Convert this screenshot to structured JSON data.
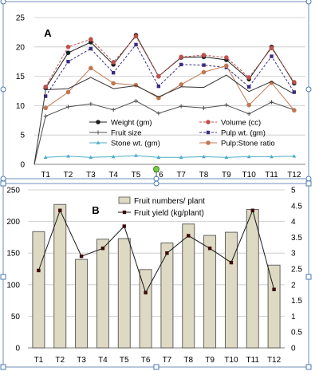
{
  "chart_data": [
    {
      "type": "line",
      "panel_label": "A",
      "categories": [
        "T1",
        "T2",
        "T3",
        "T4",
        "T5",
        "T6",
        "T7",
        "T8",
        "T9",
        "T10",
        "T11",
        "T12"
      ],
      "ylim": [
        0,
        25
      ],
      "yticks": [
        0,
        5,
        10,
        15,
        20,
        25
      ],
      "grid": true,
      "legend_position": "bottom-center",
      "series": [
        {
          "name": "Weight (gm)",
          "color": "#1f1f1f",
          "dash": "solid",
          "marker": "circle",
          "values": [
            13.0,
            19.0,
            20.8,
            17.0,
            22.0,
            15.0,
            18.2,
            18.3,
            17.8,
            14.5,
            20.0,
            13.8
          ]
        },
        {
          "name": "Volume (cc)",
          "color": "#c0504d",
          "dash": "dashed",
          "marker": "circle",
          "values": [
            13.2,
            20.0,
            21.3,
            17.4,
            21.8,
            15.0,
            18.3,
            18.6,
            18.2,
            14.8,
            19.8,
            14.0
          ]
        },
        {
          "name": "Fruit size",
          "color": "#4f4f4f",
          "dash": "solid",
          "marker": "star",
          "values": [
            8.2,
            9.8,
            10.3,
            9.3,
            10.8,
            8.7,
            9.9,
            9.6,
            10.1,
            8.6,
            10.6,
            9.3
          ]
        },
        {
          "name": "Pulp wt. (gm)",
          "color": "#3b2b80",
          "dash": "dashed",
          "marker": "square",
          "values": [
            11.6,
            17.5,
            19.7,
            15.6,
            20.4,
            13.3,
            17.0,
            16.9,
            16.5,
            13.2,
            18.4,
            12.3
          ]
        },
        {
          "name": "Stone wt. (gm)",
          "color": "#4bacc6",
          "dash": "solid",
          "marker": "triangle",
          "values": [
            1.2,
            1.4,
            1.2,
            1.3,
            1.5,
            1.2,
            1.2,
            1.3,
            1.2,
            1.3,
            1.3,
            1.4
          ]
        },
        {
          "name": "Pulp:Stone ratio",
          "color": "#c07850",
          "dash": "solid",
          "marker": "circle",
          "values": [
            9.6,
            12.3,
            16.4,
            13.8,
            13.5,
            11.3,
            13.6,
            15.7,
            16.8,
            10.1,
            13.9,
            9.2
          ]
        },
        {
          "name": "",
          "color": "#333333",
          "dash": "solid",
          "marker": "none",
          "values": [
            12.7,
            12.9,
            14.8,
            12.9,
            13.4,
            11.5,
            13.2,
            13.1,
            15.2,
            12.4,
            14.1,
            12.0
          ]
        }
      ]
    },
    {
      "type": "bar",
      "panel_label": "B",
      "categories": [
        "T1",
        "T2",
        "T3",
        "T4",
        "T5",
        "T6",
        "T7",
        "T8",
        "T9",
        "T10",
        "T11",
        "T12"
      ],
      "ylim_left": [
        0,
        250
      ],
      "yticks_left": [
        0,
        50,
        100,
        150,
        200,
        250
      ],
      "ylim_right": [
        0,
        5
      ],
      "yticks_right": [
        "0",
        "0.5",
        "1",
        "1.5",
        "2",
        "2.5",
        "3",
        "3.5",
        "4",
        "4.5",
        "5"
      ],
      "grid": true,
      "legend_position": "top-center",
      "series": [
        {
          "name": "Fruit numbers/ plant",
          "type": "bar",
          "axis": "left",
          "color": "#ddd9c3",
          "values": [
            184,
            227,
            140,
            172,
            173,
            124,
            166,
            196,
            178,
            183,
            219,
            131
          ]
        },
        {
          "name": "Fruit yield (kg/plant)",
          "type": "line",
          "axis": "right",
          "color": "#3a0a0a",
          "marker": "square",
          "values": [
            2.45,
            4.35,
            2.9,
            3.15,
            3.85,
            1.75,
            3.0,
            3.55,
            3.15,
            2.7,
            4.35,
            1.85
          ]
        }
      ]
    }
  ]
}
